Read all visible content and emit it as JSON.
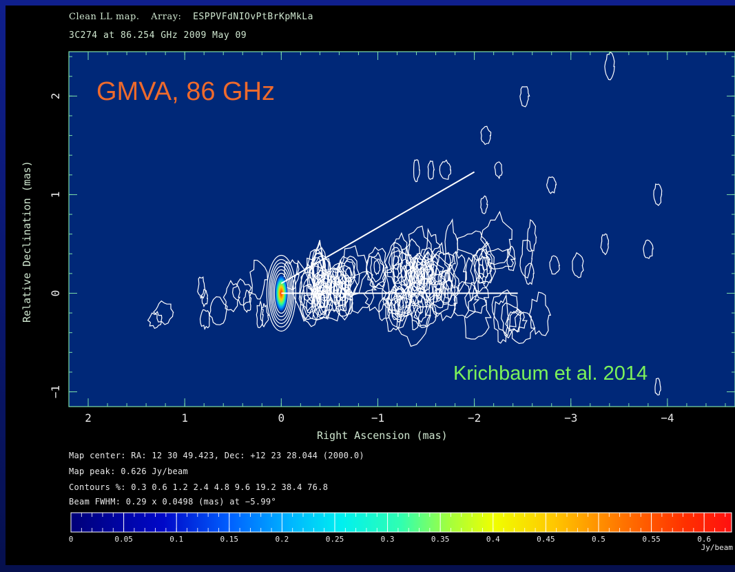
{
  "header": {
    "line1_prefix": "Clean LL map.",
    "line1_array_label": "Array:",
    "line1_array": "ESPPVFdNIOvPtBrKpMkLa",
    "line2": "3C274 at 86.254 GHz 2009 May 09"
  },
  "overlay": {
    "title": "GMVA, 86 GHz",
    "credit": "Krichbaum et al. 2014",
    "title_color": "#ee6a2c",
    "credit_color": "#7cf25a"
  },
  "info": {
    "map_center": "Map center:  RA: 12 30 49.423,  Dec: +12 23 28.044 (2000.0)",
    "map_peak": "Map peak: 0.626 Jy/beam",
    "contours": "Contours %: 0.3 0.6 1.2 2.4 4.8 9.6 19.2 38.4 76.8",
    "beam": "Beam FWHM: 0.29 x 0.0498 (mas) at −5.99°"
  },
  "chart_data": {
    "type": "heatmap",
    "title": "Clean LL map.  Array: ESPPVFdNIOvPtBrKpMkLa",
    "subtitle": "3C274 at 86.254 GHz 2009 May 09",
    "xlabel": "Right Ascension   (mas)",
    "ylabel": "Relative Declination   (mas)",
    "xlim": [
      2.2,
      -4.7
    ],
    "ylim": [
      -1.15,
      2.45
    ],
    "x_ticks": [
      "2",
      "1",
      "0",
      "−1",
      "−2",
      "−3",
      "−4"
    ],
    "x_tick_values": [
      2,
      1,
      0,
      -1,
      -2,
      -3,
      -4
    ],
    "y_ticks": [
      "−1",
      "0",
      "1",
      "2"
    ],
    "y_tick_values": [
      -1,
      0,
      1,
      2
    ],
    "map_peak_jy_per_beam": 0.626,
    "contour_levels_percent": [
      0.3,
      0.6,
      1.2,
      2.4,
      4.8,
      9.6,
      19.2,
      38.4,
      76.8
    ],
    "beam_fwhm_mas": [
      0.29,
      0.0498
    ],
    "beam_pa_deg": -5.99,
    "core_position_mas": [
      0,
      0
    ],
    "jet_direction_lines": [
      {
        "from": [
          0,
          0.1
        ],
        "to": [
          -2.0,
          1.23
        ]
      },
      {
        "from": [
          0,
          0
        ],
        "to": [
          -2.45,
          0
        ]
      }
    ],
    "colorbar": {
      "ticks": [
        "0",
        "0.05",
        "0.1",
        "0.15",
        "0.2",
        "0.25",
        "0.3",
        "0.35",
        "0.4",
        "0.45",
        "0.5",
        "0.55",
        "0.6"
      ],
      "tick_values": [
        0,
        0.05,
        0.1,
        0.15,
        0.2,
        0.25,
        0.3,
        0.35,
        0.4,
        0.45,
        0.5,
        0.55,
        0.6
      ],
      "unit": "Jy/beam",
      "range": [
        0,
        0.626
      ]
    },
    "colors": {
      "map_background": "#002878",
      "contour": "#ffffff",
      "axis": "#7ee0a8",
      "jet_lines": "#ffffff"
    }
  }
}
